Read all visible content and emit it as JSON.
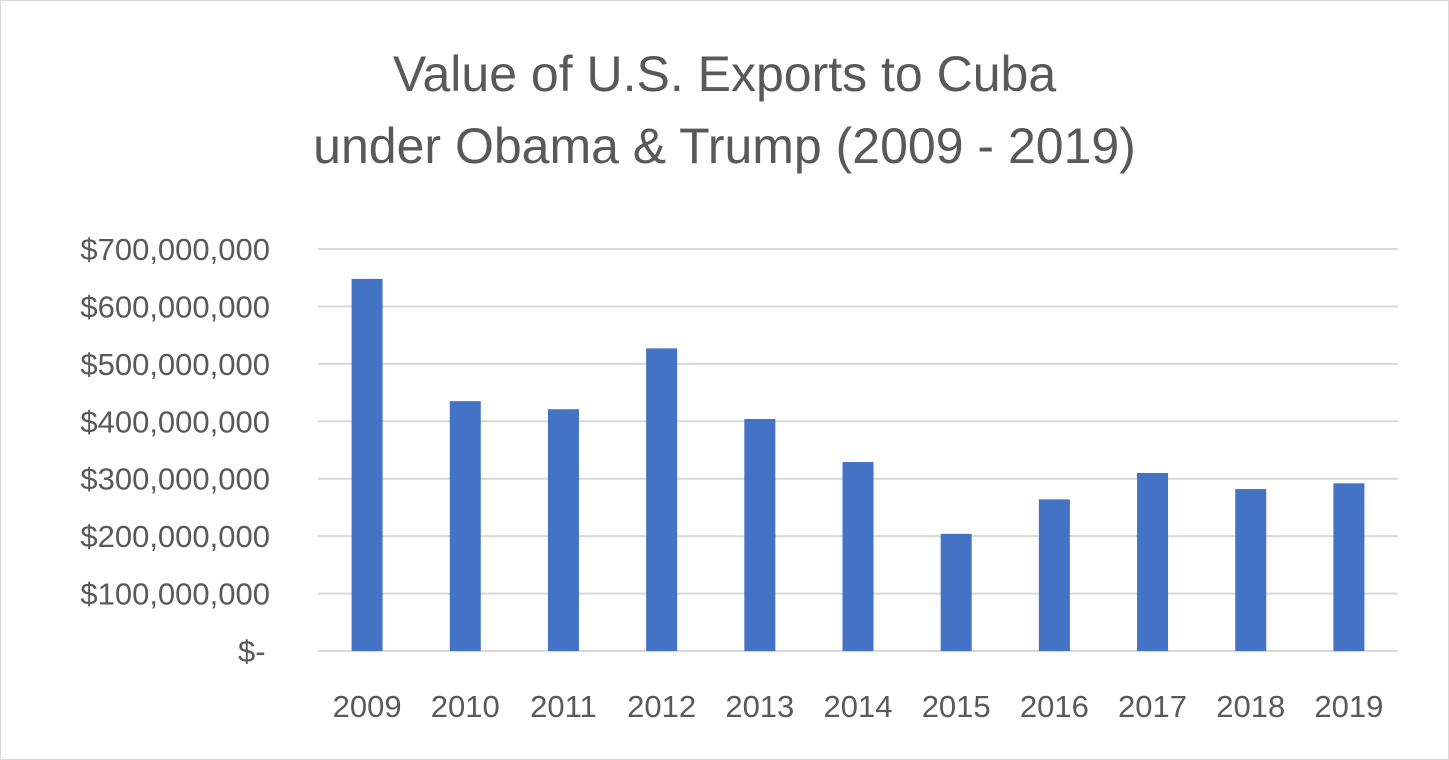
{
  "chart_data": {
    "type": "bar",
    "title": "Value of U.S. Exports to Cuba under Obama & Trump (2009 - 2019)",
    "title_lines": [
      "Value of U.S. Exports to Cuba",
      "under Obama & Trump (2009 - 2019)"
    ],
    "xlabel": "",
    "ylabel": "",
    "categories": [
      "2009",
      "2010",
      "2011",
      "2012",
      "2013",
      "2014",
      "2015",
      "2016",
      "2017",
      "2018",
      "2019"
    ],
    "values": [
      648000000,
      435000000,
      421000000,
      527000000,
      404000000,
      329000000,
      204000000,
      264000000,
      310000000,
      282000000,
      292000000
    ],
    "ylim": [
      0,
      700000000
    ],
    "yticks": [
      0,
      100000000,
      200000000,
      300000000,
      400000000,
      500000000,
      600000000,
      700000000
    ],
    "ytick_labels": [
      "$-",
      "$100,000,000",
      "$200,000,000",
      "$300,000,000",
      "$400,000,000",
      "$500,000,000",
      "$600,000,000",
      "$700,000,000"
    ],
    "grid": true,
    "legend": "none",
    "bar_color": "#4472c4",
    "grid_color": "#d9d9d9",
    "text_color": "#595959"
  }
}
